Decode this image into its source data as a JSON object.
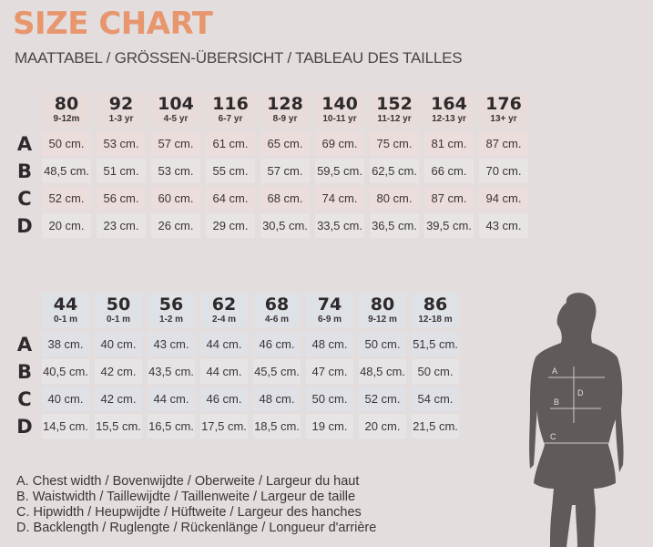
{
  "title": "SIZE CHART",
  "subtitle": "MAATTABEL / GRÖSSEN-ÜBERSICHT / TABLEAU DES TAILLES",
  "row_labels": [
    "A",
    "B",
    "C",
    "D"
  ],
  "table1": {
    "sizes": [
      {
        "size": "80",
        "age": "9-12m"
      },
      {
        "size": "92",
        "age": "1-3 yr"
      },
      {
        "size": "104",
        "age": "4-5 yr"
      },
      {
        "size": "116",
        "age": "6-7 yr"
      },
      {
        "size": "128",
        "age": "8-9 yr"
      },
      {
        "size": "140",
        "age": "10-11 yr"
      },
      {
        "size": "152",
        "age": "11-12 yr"
      },
      {
        "size": "164",
        "age": "12-13 yr"
      },
      {
        "size": "176",
        "age": "13+ yr"
      }
    ],
    "rows": [
      [
        "50 cm.",
        "53 cm.",
        "57 cm.",
        "61 cm.",
        "65 cm.",
        "69 cm.",
        "75 cm.",
        "81 cm.",
        "87 cm."
      ],
      [
        "48,5 cm.",
        "51 cm.",
        "53 cm.",
        "55 cm.",
        "57 cm.",
        "59,5 cm.",
        "62,5 cm.",
        "66 cm.",
        "70 cm."
      ],
      [
        "52 cm.",
        "56 cm.",
        "60 cm.",
        "64 cm.",
        "68 cm.",
        "74 cm.",
        "80 cm.",
        "87 cm.",
        "94 cm."
      ],
      [
        "20 cm.",
        "23 cm.",
        "26 cm.",
        "29 cm.",
        "30,5 cm.",
        "33,5 cm.",
        "36,5 cm.",
        "39,5 cm.",
        "43 cm."
      ]
    ]
  },
  "table2": {
    "sizes": [
      {
        "size": "44",
        "age": "0-1 m"
      },
      {
        "size": "50",
        "age": "0-1 m"
      },
      {
        "size": "56",
        "age": "1-2 m"
      },
      {
        "size": "62",
        "age": "2-4 m"
      },
      {
        "size": "68",
        "age": "4-6 m"
      },
      {
        "size": "74",
        "age": "6-9 m"
      },
      {
        "size": "80",
        "age": "9-12 m"
      },
      {
        "size": "86",
        "age": "12-18 m"
      }
    ],
    "rows": [
      [
        "38 cm.",
        "40 cm.",
        "43 cm.",
        "44 cm.",
        "46 cm.",
        "48 cm.",
        "50 cm.",
        "51,5 cm."
      ],
      [
        "40,5 cm.",
        "42 cm.",
        "43,5 cm.",
        "44 cm.",
        "45,5 cm.",
        "47 cm.",
        "48,5 cm.",
        "50 cm."
      ],
      [
        "40 cm.",
        "42 cm.",
        "44 cm.",
        "46 cm.",
        "48 cm.",
        "50 cm.",
        "52 cm.",
        "54 cm."
      ],
      [
        "14,5 cm.",
        "15,5 cm.",
        "16,5 cm.",
        "17,5 cm.",
        "18,5 cm.",
        "19 cm.",
        "20 cm.",
        "21,5 cm."
      ]
    ]
  },
  "legend": [
    "A. Chest width / Bovenwijdte / Oberweite / Largeur du haut",
    "B. Waistwidth / Taillewijdte / Taillenweite / Largeur de taille",
    "C. Hipwidth / Heupwijdte / Hüftweite / Largeur des hanches",
    "D. Backlength / Ruglengte / Rückenlänge / Longueur d'arrière"
  ],
  "figure_labels": [
    "A",
    "B",
    "C",
    "D"
  ],
  "colors": {
    "background": "#e3dedd",
    "title": "#e7966e",
    "silhouette": "#615a5b"
  }
}
